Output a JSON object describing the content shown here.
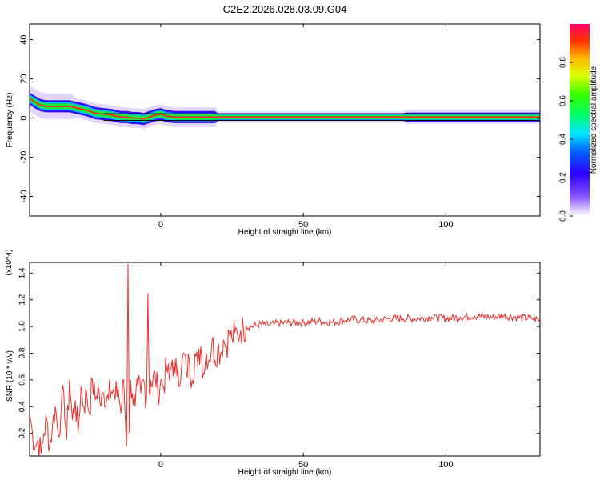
{
  "title": "C2E2.2026.028.03.09.G04",
  "colors": {
    "snr_line": "#e8312e",
    "freq_core": "#ff1f1f",
    "freq_band_inner": "#18e83a",
    "freq_band_mid": "#00b7ff",
    "freq_band_outer": "#2e10ff",
    "freq_halo": "#cbb3ff"
  },
  "colorbar": {
    "label": "Normalized spectral amplitude",
    "ticks": [
      "0.0",
      "0.2",
      "0.4",
      "0.6",
      "0.8"
    ],
    "tick_values": [
      0.0,
      0.2,
      0.4,
      0.6,
      0.8
    ]
  },
  "chart_data": [
    {
      "type": "heatmap",
      "title": "C2E2.2026.028.03.09.G04",
      "xlabel": "Height of straight line (km)",
      "ylabel": "Frequency (Hz)",
      "xlim": [
        -46,
        133
      ],
      "ylim": [
        -50,
        48
      ],
      "xticks": [
        0,
        50,
        100
      ],
      "yticks": [
        -40,
        -20,
        0,
        20,
        40
      ],
      "colorbar_label": "Normalized spectral amplitude",
      "ridge": {
        "x": [
          -46,
          -44,
          -42,
          -40,
          -38,
          -35,
          -32,
          -29,
          -26,
          -23,
          -20,
          -17,
          -14,
          -12,
          -10,
          -8,
          -6,
          -4,
          -2,
          0,
          2,
          5,
          8,
          12,
          16,
          20,
          25,
          30,
          40,
          60,
          80,
          100,
          120,
          133
        ],
        "y": [
          10,
          8,
          6.5,
          6,
          6,
          6,
          6,
          5,
          4,
          2.5,
          2,
          1.5,
          0.5,
          0.5,
          0,
          0,
          -0.5,
          0.5,
          1.5,
          2,
          1,
          0.5,
          0.5,
          0.5,
          0.5,
          0.5,
          0.5,
          0.5,
          0.5,
          0.5,
          0.5,
          0.5,
          0.5,
          0.5
        ]
      },
      "amplitude_range": [
        0.0,
        1.0
      ]
    },
    {
      "type": "line",
      "xlabel": "Height of straight line (km)",
      "ylabel": "SNR (10 * v/v)",
      "y_scale_label": "(x10^4)",
      "xlim": [
        -46,
        133
      ],
      "ylim": [
        0.03,
        1.48
      ],
      "xticks": [
        0,
        50,
        100
      ],
      "yticks": [
        0.2,
        0.4,
        0.6,
        0.8,
        1.0,
        1.2,
        1.4
      ],
      "series": [
        {
          "x": [
            -46,
            -45,
            -44,
            -43,
            -42,
            -41,
            -40,
            -39,
            -38,
            -37,
            -36,
            -35,
            -34,
            -33,
            -32,
            -31,
            -30,
            -29,
            -28,
            -27,
            -26,
            -25,
            -24,
            -23,
            -22,
            -21,
            -20,
            -19,
            -18,
            -17,
            -16,
            -15,
            -14,
            -13,
            -12,
            -11.5,
            -11,
            -10.5,
            -10,
            -9,
            -8,
            -7,
            -6,
            -5,
            -4.5,
            -4,
            -3.5,
            -3,
            -2,
            -1,
            0,
            1,
            2,
            3,
            4,
            5,
            6,
            7,
            8,
            9,
            10,
            11,
            12,
            13,
            14,
            15,
            16,
            17,
            18,
            19,
            20,
            21,
            22,
            23,
            24,
            25,
            26,
            27,
            28,
            29,
            30,
            32,
            34,
            36,
            38,
            40,
            45,
            50,
            55,
            60,
            65,
            70,
            75,
            80,
            85,
            90,
            95,
            100,
            105,
            110,
            115,
            120,
            125,
            130,
            133
          ],
          "y": [
            0.35,
            0.2,
            0.1,
            0.15,
            0.05,
            0.2,
            0.3,
            0.1,
            0.25,
            0.4,
            0.2,
            0.35,
            0.5,
            0.15,
            0.6,
            0.3,
            0.45,
            0.2,
            0.55,
            0.4,
            0.5,
            0.35,
            0.6,
            0.45,
            0.55,
            0.4,
            0.5,
            0.45,
            0.6,
            0.5,
            0.45,
            0.55,
            0.35,
            0.6,
            0.1,
            1.47,
            0.2,
            0.6,
            0.5,
            0.4,
            0.55,
            0.5,
            0.6,
            0.45,
            1.25,
            0.5,
            0.6,
            0.55,
            0.65,
            0.5,
            0.6,
            0.55,
            0.7,
            0.6,
            0.75,
            0.65,
            0.7,
            0.6,
            0.8,
            0.65,
            0.75,
            0.6,
            0.8,
            0.7,
            0.85,
            0.65,
            0.8,
            0.75,
            0.9,
            0.75,
            0.85,
            0.8,
            0.9,
            0.85,
            0.95,
            0.9,
            0.95,
            0.93,
            0.97,
            0.98,
            1.0,
            1.0,
            1.01,
            1.02,
            1.01,
            1.02,
            1.03,
            1.03,
            1.04,
            1.03,
            1.05,
            1.05,
            1.04,
            1.06,
            1.06,
            1.06,
            1.07,
            1.06,
            1.07,
            1.08,
            1.07,
            1.08,
            1.07,
            1.06,
            1.05
          ]
        }
      ]
    }
  ]
}
